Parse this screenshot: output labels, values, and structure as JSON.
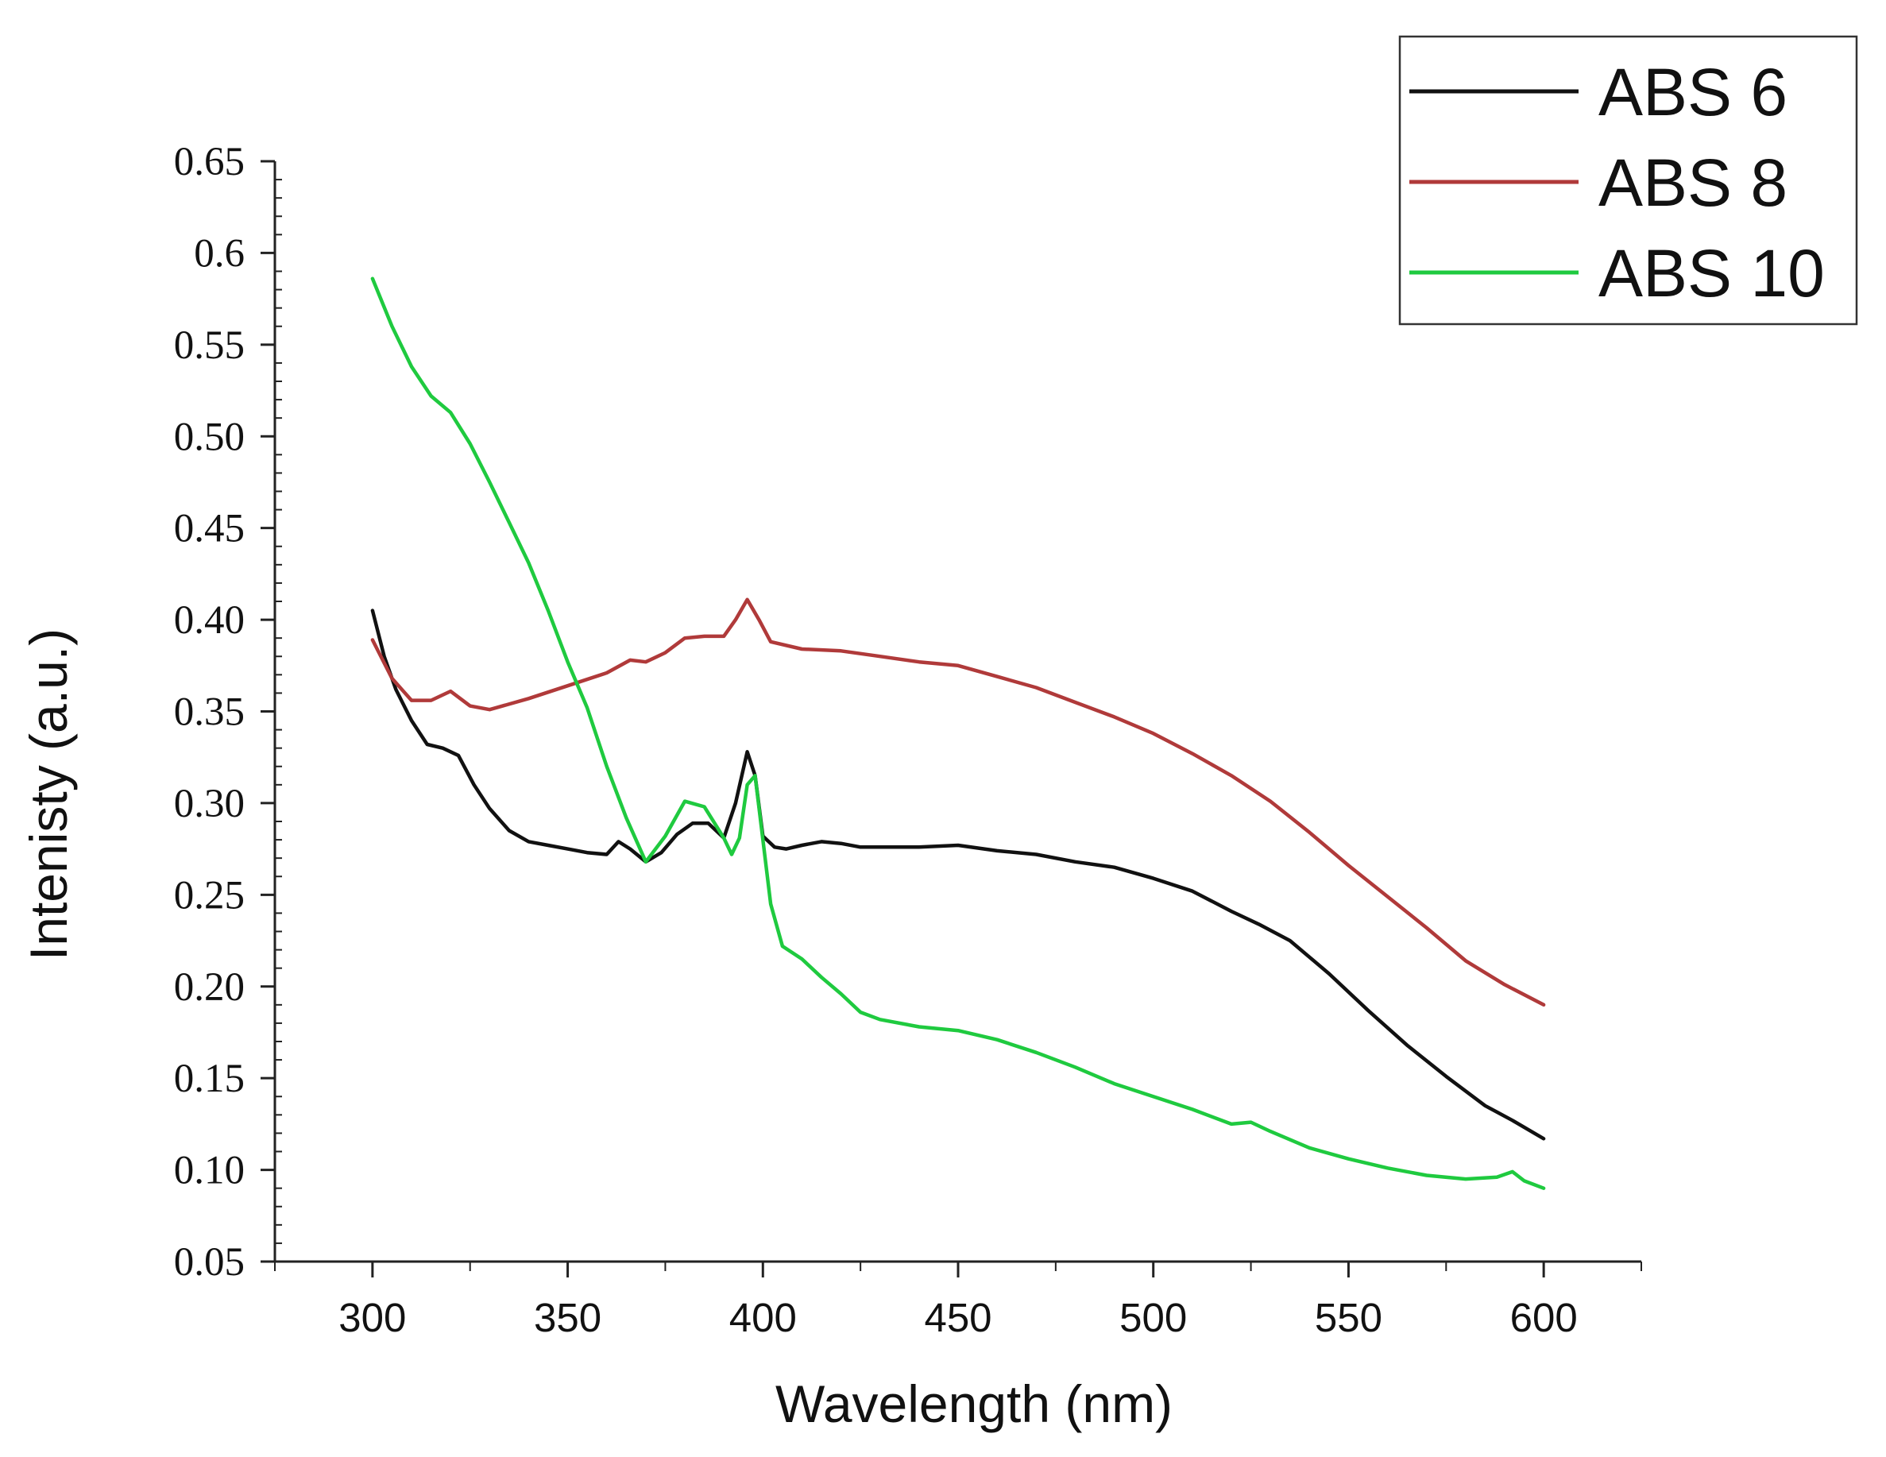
{
  "chart_data": {
    "type": "line",
    "title": "",
    "xlabel": "Wavelength (nm)",
    "ylabel": "Intenisty (a.u.)",
    "xlim": [
      275,
      625
    ],
    "ylim": [
      0.05,
      0.65
    ],
    "xticks": [
      {
        "value": 300,
        "label": "300"
      },
      {
        "value": 350,
        "label": "350"
      },
      {
        "value": 400,
        "label": "400"
      },
      {
        "value": 450,
        "label": "450"
      },
      {
        "value": 500,
        "label": "500"
      },
      {
        "value": 550,
        "label": "550"
      },
      {
        "value": 600,
        "label": "600"
      }
    ],
    "yticks": [
      {
        "value": 0.05,
        "label": "0.05"
      },
      {
        "value": 0.1,
        "label": "0.10"
      },
      {
        "value": 0.15,
        "label": "0.15"
      },
      {
        "value": 0.2,
        "label": "0.20"
      },
      {
        "value": 0.25,
        "label": "0.25"
      },
      {
        "value": 0.3,
        "label": "0.30"
      },
      {
        "value": 0.35,
        "label": "0.35"
      },
      {
        "value": 0.4,
        "label": "0.40"
      },
      {
        "value": 0.45,
        "label": "0.45"
      },
      {
        "value": 0.5,
        "label": "0.50"
      },
      {
        "value": 0.55,
        "label": "0.55"
      },
      {
        "value": 0.6,
        "label": "0.6"
      },
      {
        "value": 0.65,
        "label": "0.65"
      }
    ],
    "grid": false,
    "legend_position": "top-right",
    "series": [
      {
        "name": "ABS 6",
        "color": "#111111",
        "x": [
          300,
          303,
          306,
          310,
          314,
          318,
          322,
          326,
          330,
          335,
          340,
          345,
          350,
          355,
          360,
          363,
          366,
          370,
          374,
          378,
          382,
          386,
          390,
          393,
          396,
          398,
          400,
          403,
          406,
          410,
          415,
          420,
          425,
          430,
          440,
          450,
          460,
          470,
          480,
          490,
          500,
          510,
          520,
          527,
          535,
          545,
          555,
          565,
          575,
          585,
          592,
          600
        ],
        "y": [
          0.405,
          0.38,
          0.362,
          0.345,
          0.332,
          0.33,
          0.326,
          0.31,
          0.297,
          0.285,
          0.279,
          0.277,
          0.275,
          0.273,
          0.272,
          0.279,
          0.275,
          0.268,
          0.273,
          0.283,
          0.289,
          0.289,
          0.281,
          0.3,
          0.328,
          0.315,
          0.282,
          0.276,
          0.275,
          0.277,
          0.279,
          0.278,
          0.276,
          0.276,
          0.276,
          0.277,
          0.274,
          0.272,
          0.268,
          0.265,
          0.259,
          0.252,
          0.241,
          0.234,
          0.225,
          0.207,
          0.187,
          0.168,
          0.151,
          0.135,
          0.127,
          0.117
        ]
      },
      {
        "name": "ABS 8",
        "color": "#b03a3a",
        "x": [
          300,
          305,
          310,
          315,
          320,
          325,
          330,
          340,
          350,
          360,
          366,
          370,
          375,
          380,
          385,
          390,
          393,
          396,
          399,
          402,
          410,
          420,
          430,
          440,
          450,
          460,
          470,
          480,
          490,
          500,
          510,
          520,
          530,
          540,
          550,
          560,
          570,
          580,
          590,
          600
        ],
        "y": [
          0.389,
          0.368,
          0.356,
          0.356,
          0.361,
          0.353,
          0.351,
          0.357,
          0.364,
          0.371,
          0.378,
          0.377,
          0.382,
          0.39,
          0.391,
          0.391,
          0.4,
          0.411,
          0.4,
          0.388,
          0.384,
          0.383,
          0.38,
          0.377,
          0.375,
          0.369,
          0.363,
          0.355,
          0.347,
          0.338,
          0.327,
          0.315,
          0.301,
          0.284,
          0.266,
          0.249,
          0.232,
          0.214,
          0.201,
          0.19
        ]
      },
      {
        "name": "ABS 10",
        "color": "#1fca3f",
        "x": [
          300,
          305,
          310,
          315,
          320,
          325,
          330,
          335,
          340,
          345,
          350,
          355,
          360,
          365,
          370,
          375,
          380,
          385,
          390,
          392,
          394,
          396,
          398,
          400,
          402,
          405,
          410,
          415,
          420,
          425,
          430,
          440,
          450,
          460,
          470,
          480,
          490,
          500,
          510,
          520,
          525,
          530,
          540,
          550,
          560,
          570,
          580,
          588,
          592,
          595,
          600
        ],
        "y": [
          0.586,
          0.56,
          0.538,
          0.522,
          0.513,
          0.496,
          0.475,
          0.453,
          0.431,
          0.405,
          0.377,
          0.352,
          0.32,
          0.292,
          0.268,
          0.282,
          0.301,
          0.298,
          0.281,
          0.272,
          0.281,
          0.31,
          0.315,
          0.28,
          0.245,
          0.222,
          0.215,
          0.205,
          0.196,
          0.186,
          0.182,
          0.178,
          0.176,
          0.171,
          0.164,
          0.156,
          0.147,
          0.14,
          0.133,
          0.125,
          0.126,
          0.121,
          0.112,
          0.106,
          0.101,
          0.097,
          0.095,
          0.096,
          0.099,
          0.094,
          0.09
        ]
      }
    ]
  }
}
